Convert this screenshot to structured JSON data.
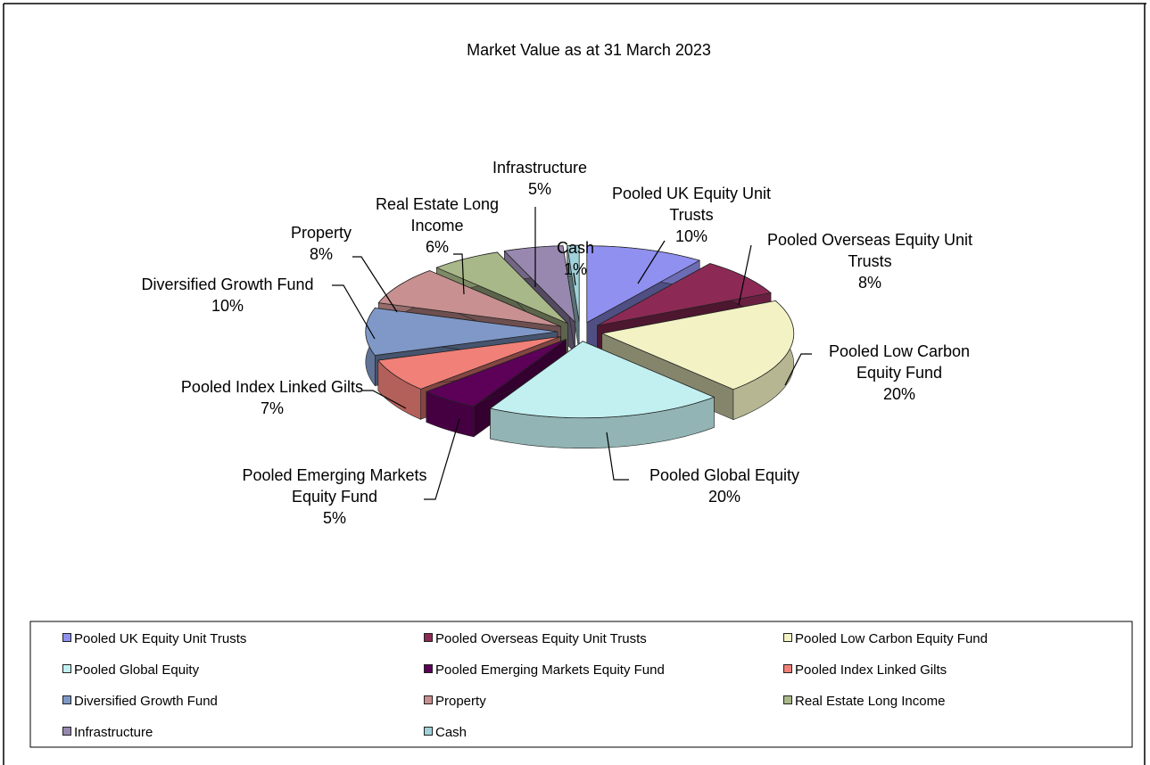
{
  "chart_data": {
    "type": "pie",
    "title": "Market Value as at 31 March 2023",
    "categories": [
      "Pooled UK Equity Unit Trusts",
      "Pooled Overseas Equity Unit Trusts",
      "Pooled Low Carbon Equity Fund",
      "Pooled Global Equity",
      "Pooled Emerging Markets Equity Fund",
      "Pooled Index Linked Gilts",
      "Diversified Growth Fund",
      "Property",
      "Real Estate Long Income",
      "Infrastructure",
      "Cash"
    ],
    "values": [
      10,
      8,
      20,
      20,
      5,
      7,
      10,
      8,
      6,
      5,
      1
    ],
    "value_labels": [
      "10%",
      "8%",
      "20%",
      "20%",
      "5%",
      "7%",
      "10%",
      "8%",
      "6%",
      "5%",
      "1%"
    ],
    "colors": [
      "#9090f0",
      "#8c2a55",
      "#f2f2c4",
      "#c2f0f0",
      "#5c0058",
      "#f08078",
      "#8098c8",
      "#c89090",
      "#a8b888",
      "#9888b0",
      "#a0d0d8"
    ],
    "legend": "bottom"
  }
}
